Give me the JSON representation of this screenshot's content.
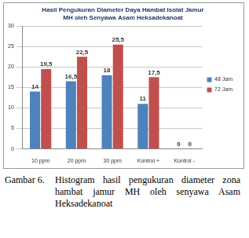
{
  "chart_data": {
    "type": "bar",
    "title": "Hasil Pengukuran Diameter Daya Hambat Isolat Jamur MH oleh Senyawa Asam Heksadekanoat",
    "categories": [
      "10 ppm",
      "20 ppm",
      "30 ppm",
      "Kontrol +",
      "Kontrol -"
    ],
    "series": [
      {
        "name": "48 Jam",
        "color": "#4f81bd",
        "values": [
          14,
          16.5,
          18,
          11,
          0
        ],
        "value_labels": [
          "14",
          "16,5",
          "18",
          "11",
          "0"
        ]
      },
      {
        "name": "72 Jam",
        "color": "#c0504d",
        "values": [
          19.5,
          22.5,
          25.5,
          17.5,
          0
        ],
        "value_labels": [
          "19,5",
          "22,5",
          "25,5",
          "17,5",
          "0"
        ]
      }
    ],
    "ylim": [
      0,
      30
    ],
    "yticks": [
      0,
      5,
      10,
      15,
      20,
      25,
      30
    ],
    "grid": true,
    "legend": "right",
    "data_labels": true,
    "caption": {
      "label": "Gambar 6.",
      "text": "Histogram hasil pengukuran diameter zona hambat jamur MH oleh senyawa Asam Heksadekanoat"
    }
  }
}
